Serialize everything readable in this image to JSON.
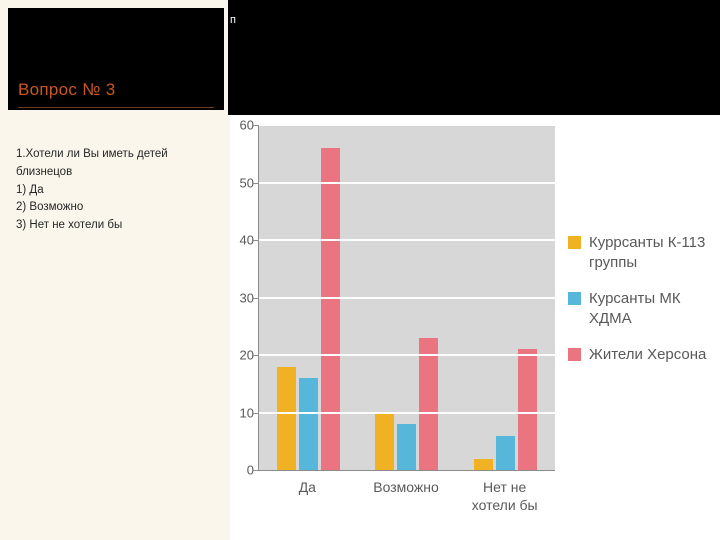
{
  "slide": {
    "header_fragment": "п",
    "title": "Вопрос № 3",
    "body_lines": [
      "1.Хотели ли Вы иметь детей",
      "близнецов",
      "1) Да",
      "2) Возможно",
      "3) Нет не хотели бы"
    ]
  },
  "chart_data": {
    "type": "bar",
    "title": "",
    "xlabel": "",
    "ylabel": "",
    "categories": [
      "Да",
      "Возможно",
      "Нет не хотели бы"
    ],
    "category_labels_wrapped": [
      "Да",
      "Возможно",
      "Нет не\nхотели бы"
    ],
    "series": [
      {
        "name": "Куррсанты К-113 группы",
        "color": "#F0B222",
        "values": [
          18,
          10,
          2
        ]
      },
      {
        "name": "Курсанты МК ХДМА",
        "color": "#57B7DA",
        "values": [
          16,
          8,
          6
        ]
      },
      {
        "name": "Жители Херсона",
        "color": "#EA7480",
        "values": [
          56,
          23,
          21
        ]
      }
    ],
    "ylim": [
      0,
      60
    ],
    "yticks": [
      0,
      10,
      20,
      30,
      40,
      50,
      60
    ],
    "grid": true,
    "legend_position": "right",
    "plot_bg": "#D7D7D7",
    "gridline_color": "#FFFFFF",
    "axis_text_color": "#595959"
  }
}
